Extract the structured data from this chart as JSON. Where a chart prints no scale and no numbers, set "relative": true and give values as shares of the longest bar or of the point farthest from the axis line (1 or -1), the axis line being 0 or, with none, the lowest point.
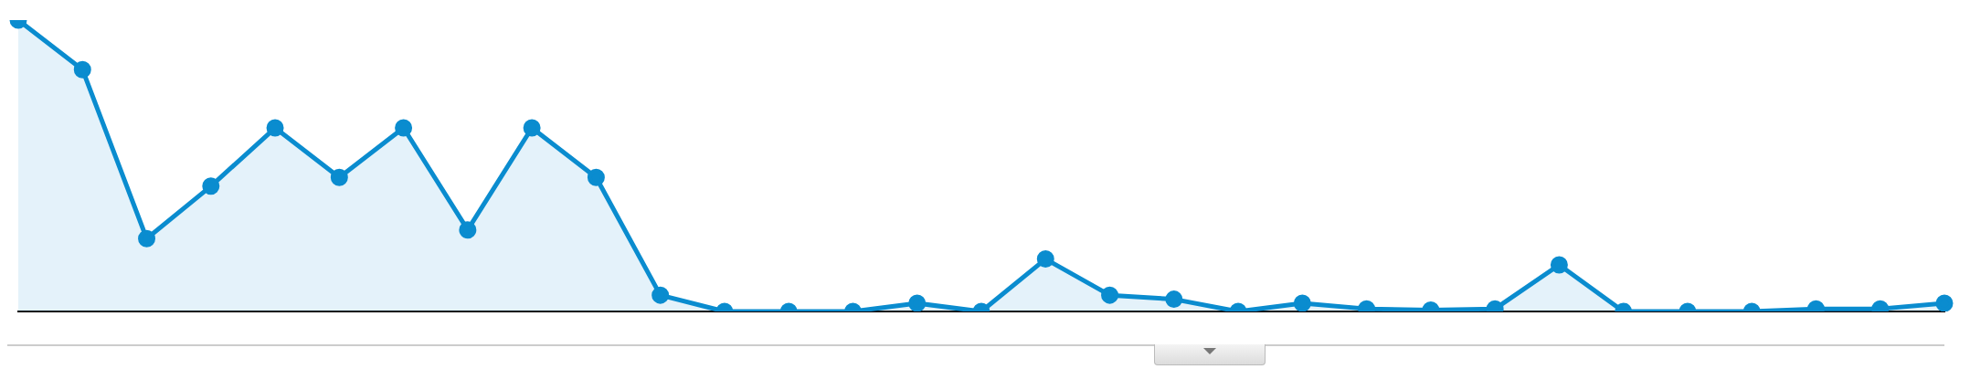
{
  "chart_data": {
    "type": "area",
    "relative": true,
    "marker": "circle",
    "line_style": "solid",
    "legend": false,
    "categories": [
      null,
      null,
      null,
      null,
      null,
      null,
      null,
      null,
      null,
      null,
      null,
      null,
      null,
      null,
      null,
      null,
      null,
      null,
      null,
      null,
      null,
      null,
      null,
      null,
      null,
      null,
      null,
      null,
      null,
      null,
      null
    ],
    "series": [
      {
        "color": "#0a8ccf",
        "values": [
          1.0,
          0.83,
          0.25,
          0.43,
          0.63,
          0.46,
          0.63,
          0.28,
          0.63,
          0.46,
          0.056,
          0,
          0,
          0,
          0.028,
          0,
          0.18,
          0.056,
          0.042,
          0,
          0.028,
          0.009,
          0.005,
          0.009,
          0.16,
          0,
          0,
          0,
          0.009,
          0.009,
          0.028
        ]
      }
    ]
  }
}
